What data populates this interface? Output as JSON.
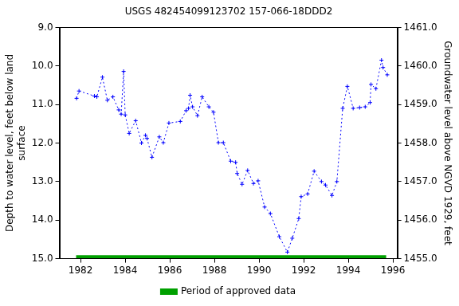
{
  "chart_data": {
    "type": "line",
    "title": "USGS 482454099123702 157-066-18DDD2",
    "y_label": [
      "Depth to water level, feet below land",
      "surface"
    ],
    "y2_label": "Groundwater level above NGVD 1929, feet",
    "xlim": [
      1981.05,
      1996.2
    ],
    "xticks": [
      1982,
      1984,
      1986,
      1988,
      1990,
      1992,
      1994,
      1996
    ],
    "ylim": [
      15,
      9
    ],
    "yticks": [
      {
        "value": 9,
        "label": "9.0"
      },
      {
        "value": 10,
        "label": "10.0"
      },
      {
        "value": 11,
        "label": "11.0"
      },
      {
        "value": 12,
        "label": "12.0"
      },
      {
        "value": 13,
        "label": "13.0"
      },
      {
        "value": 14,
        "label": "14.0"
      },
      {
        "value": 15,
        "label": "15.0"
      }
    ],
    "y2lim": [
      1455,
      1461
    ],
    "y2ticks": [
      {
        "value": 1455,
        "label": "1455.0"
      },
      {
        "value": 1456,
        "label": "1456.0"
      },
      {
        "value": 1457,
        "label": "1457.0"
      },
      {
        "value": 1458,
        "label": "1458.0"
      },
      {
        "value": 1459,
        "label": "1459.0"
      },
      {
        "value": 1460,
        "label": "1460.0"
      },
      {
        "value": 1461,
        "label": "1461.0"
      }
    ],
    "grid": false,
    "legend": "bottom",
    "series": [
      {
        "color": "#0000ff",
        "line_style": "dotted",
        "marker": "plus",
        "x": [
          1981.82,
          1981.93,
          1982.62,
          1982.73,
          1982.98,
          1983.2,
          1983.45,
          1983.71,
          1983.82,
          1983.93,
          1984.0,
          1984.18,
          1984.47,
          1984.73,
          1984.91,
          1984.98,
          1985.2,
          1985.53,
          1985.71,
          1985.96,
          1986.47,
          1986.73,
          1986.84,
          1986.91,
          1987.02,
          1987.24,
          1987.45,
          1987.75,
          1987.96,
          1988.18,
          1988.4,
          1988.73,
          1988.95,
          1989.02,
          1989.24,
          1989.49,
          1989.75,
          1989.96,
          1990.25,
          1990.51,
          1990.91,
          1991.27,
          1991.49,
          1991.78,
          1991.89,
          1992.18,
          1992.47,
          1992.8,
          1992.98,
          1993.27,
          1993.49,
          1993.75,
          1993.96,
          1994.22,
          1994.51,
          1994.76,
          1994.98,
          1995.02,
          1995.24,
          1995.49,
          1995.56,
          1995.75
        ],
        "values": [
          10.84,
          10.65,
          10.78,
          10.8,
          10.29,
          10.89,
          10.8,
          11.14,
          11.25,
          10.14,
          11.27,
          11.75,
          11.42,
          12.0,
          11.8,
          11.88,
          12.37,
          11.84,
          11.99,
          11.48,
          11.44,
          11.16,
          11.1,
          10.76,
          11.06,
          11.29,
          10.8,
          11.06,
          11.2,
          11.99,
          11.99,
          12.47,
          12.5,
          12.79,
          13.07,
          12.71,
          13.05,
          12.98,
          13.66,
          13.83,
          14.43,
          14.83,
          14.47,
          13.96,
          13.39,
          13.32,
          12.73,
          13.0,
          13.09,
          13.36,
          13.0,
          11.1,
          10.53,
          11.1,
          11.08,
          11.06,
          10.95,
          10.48,
          10.59,
          9.85,
          10.04,
          10.23
        ]
      },
      {
        "name": "Period of approved data",
        "color": "#00a000",
        "line_style": "solid",
        "x": [
          1981.8,
          1995.7
        ],
        "values": [
          14.95,
          14.95
        ]
      }
    ]
  }
}
